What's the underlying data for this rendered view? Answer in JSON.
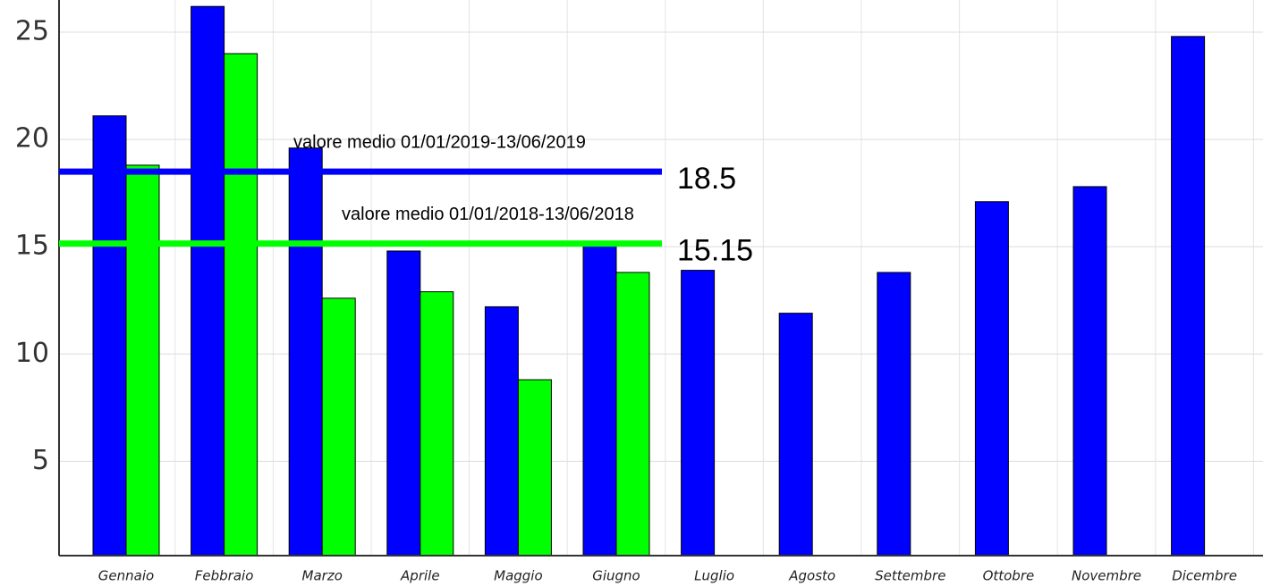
{
  "chart_data": {
    "type": "bar",
    "categories": [
      "Gennaio",
      "Febbraio",
      "Marzo",
      "Aprile",
      "Maggio",
      "Giugno",
      "Luglio",
      "Agosto",
      "Settembre",
      "Ottobre",
      "Novembre",
      "Dicembre"
    ],
    "series": [
      {
        "color": "#0000ff",
        "values": [
          21.1,
          26.2,
          19.6,
          14.8,
          12.2,
          15.2,
          13.9,
          11.9,
          13.8,
          17.1,
          17.8,
          24.8
        ]
      },
      {
        "color": "#00ff00",
        "values": [
          18.8,
          24.0,
          12.6,
          12.9,
          8.8,
          13.8,
          null,
          null,
          null,
          null,
          null,
          null
        ]
      }
    ],
    "reference_lines": [
      {
        "label": "valore medio 01/01/2019-13/06/2019",
        "value": 18.5,
        "color": "#0000ff"
      },
      {
        "label": "valore medio 01/01/2018-13/06/2018",
        "value": 15.15,
        "color": "#00ff00"
      }
    ],
    "ylim": [
      0.6,
      26.5
    ],
    "yticks": [
      5,
      10,
      15,
      20,
      25
    ],
    "grid": true
  }
}
